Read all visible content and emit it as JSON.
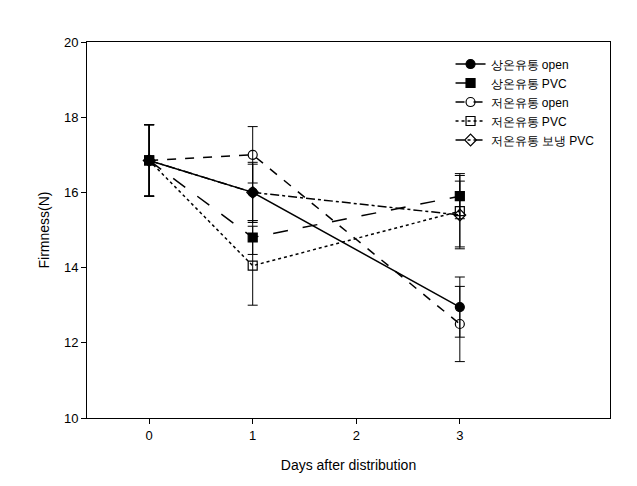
{
  "chart_data": {
    "type": "line",
    "x_label": "Days after distribution",
    "y_label": "Firmness(N)",
    "xlim": [
      -0.6,
      4.45
    ],
    "xticks": [
      0,
      1,
      2,
      3
    ],
    "ylim": [
      10,
      20
    ],
    "yticks": [
      10,
      12,
      14,
      16,
      18,
      20
    ],
    "grid": false,
    "legend": "upper right",
    "series": [
      {
        "name": "상온유통 open",
        "color": "#000000",
        "marker": "circle",
        "line_style": "solid",
        "x": [
          0,
          1,
          3
        ],
        "values": [
          16.85,
          16.0,
          12.95
        ],
        "error": [
          0.95,
          0.75,
          0.8
        ]
      },
      {
        "name": "상온유통 PVC",
        "color": "#000000",
        "marker": "square",
        "line_style": "longdash",
        "x": [
          0,
          1,
          3
        ],
        "values": [
          16.85,
          14.8,
          15.9
        ],
        "error": [
          0.95,
          0.45,
          0.6
        ]
      },
      {
        "name": "저온유통 open",
        "color": "#000000",
        "marker": "circle-open",
        "line_style": "dash",
        "x": [
          0,
          1,
          3
        ],
        "values": [
          16.85,
          17.0,
          12.5
        ],
        "error": [
          0.95,
          0.75,
          1.0
        ]
      },
      {
        "name": "저온유통 PVC",
        "color": "#000000",
        "marker": "square-open",
        "line_style": "dot",
        "x": [
          0,
          1,
          3
        ],
        "values": [
          16.85,
          14.05,
          15.5
        ],
        "error": [
          0.95,
          1.05,
          0.95
        ]
      },
      {
        "name": "저온유통 보냉 PVC",
        "color": "#000000",
        "marker": "diamond-open",
        "line_style": "dashdot",
        "x": [
          0,
          1,
          3
        ],
        "values": [
          16.85,
          16.0,
          15.4
        ],
        "error": [
          0.95,
          0.8,
          0.9
        ]
      }
    ]
  }
}
